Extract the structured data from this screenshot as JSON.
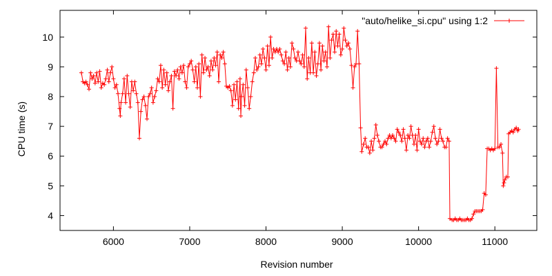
{
  "chart_data": {
    "type": "line",
    "title": "",
    "xlabel": "Revision number",
    "ylabel": "CPU time (s)",
    "xlim": [
      5300,
      11550
    ],
    "ylim": [
      3.5,
      10.9
    ],
    "xticks": [
      6000,
      7000,
      8000,
      9000,
      10000,
      11000
    ],
    "yticks": [
      4,
      5,
      6,
      7,
      8,
      9,
      10
    ],
    "grid": false,
    "legend_position": "top-right",
    "series": [
      {
        "name": "\"auto/helike_si.cpu\" using 1:2",
        "color": "#ff0000",
        "marker": "plus",
        "points": [
          [
            5580,
            8.8
          ],
          [
            5600,
            8.5
          ],
          [
            5620,
            8.45
          ],
          [
            5640,
            8.5
          ],
          [
            5660,
            8.4
          ],
          [
            5680,
            8.25
          ],
          [
            5700,
            8.8
          ],
          [
            5720,
            8.6
          ],
          [
            5740,
            8.7
          ],
          [
            5760,
            8.45
          ],
          [
            5780,
            8.8
          ],
          [
            5800,
            8.5
          ],
          [
            5820,
            8.85
          ],
          [
            5840,
            8.3
          ],
          [
            5860,
            8.45
          ],
          [
            5880,
            8.4
          ],
          [
            5900,
            8.6
          ],
          [
            5920,
            8.9
          ],
          [
            5940,
            8.5
          ],
          [
            5960,
            8.8
          ],
          [
            5980,
            9.0
          ],
          [
            6000,
            8.6
          ],
          [
            6020,
            8.3
          ],
          [
            6040,
            8.4
          ],
          [
            6060,
            8.1
          ],
          [
            6080,
            7.6
          ],
          [
            6090,
            7.35
          ],
          [
            6100,
            7.8
          ],
          [
            6120,
            8.1
          ],
          [
            6140,
            8.6
          ],
          [
            6160,
            7.8
          ],
          [
            6180,
            8.7
          ],
          [
            6200,
            8.1
          ],
          [
            6220,
            7.65
          ],
          [
            6240,
            8.5
          ],
          [
            6260,
            8.2
          ],
          [
            6280,
            8.5
          ],
          [
            6300,
            8.1
          ],
          [
            6320,
            7.8
          ],
          [
            6340,
            6.6
          ],
          [
            6360,
            7.5
          ],
          [
            6380,
            7.9
          ],
          [
            6400,
            8.0
          ],
          [
            6420,
            7.7
          ],
          [
            6440,
            7.25
          ],
          [
            6460,
            8.0
          ],
          [
            6480,
            8.1
          ],
          [
            6500,
            8.3
          ],
          [
            6520,
            7.8
          ],
          [
            6540,
            8.0
          ],
          [
            6560,
            8.2
          ],
          [
            6580,
            8.6
          ],
          [
            6600,
            8.5
          ],
          [
            6620,
            9.05
          ],
          [
            6640,
            8.3
          ],
          [
            6660,
            8.9
          ],
          [
            6680,
            8.4
          ],
          [
            6700,
            8.8
          ],
          [
            6720,
            8.2
          ],
          [
            6740,
            8.5
          ],
          [
            6760,
            8.7
          ],
          [
            6780,
            7.6
          ],
          [
            6800,
            8.85
          ],
          [
            6820,
            8.7
          ],
          [
            6840,
            8.9
          ],
          [
            6860,
            8.6
          ],
          [
            6880,
            9.0
          ],
          [
            6900,
            8.8
          ],
          [
            6920,
            9.05
          ],
          [
            6940,
            8.5
          ],
          [
            6960,
            8.3
          ],
          [
            6980,
            9.0
          ],
          [
            7000,
            9.1
          ],
          [
            7020,
            9.2
          ],
          [
            7040,
            8.9
          ],
          [
            7060,
            8.5
          ],
          [
            7080,
            9.0
          ],
          [
            7100,
            8.3
          ],
          [
            7120,
            9.1
          ],
          [
            7140,
            8.0
          ],
          [
            7160,
            9.4
          ],
          [
            7180,
            8.8
          ],
          [
            7200,
            9.3
          ],
          [
            7220,
            8.9
          ],
          [
            7240,
            9.0
          ],
          [
            7260,
            8.7
          ],
          [
            7280,
            9.2
          ],
          [
            7300,
            8.9
          ],
          [
            7320,
            9.3
          ],
          [
            7340,
            9.05
          ],
          [
            7360,
            9.5
          ],
          [
            7380,
            8.5
          ],
          [
            7400,
            9.4
          ],
          [
            7420,
            9.3
          ],
          [
            7440,
            9.5
          ],
          [
            7460,
            9.1
          ],
          [
            7480,
            8.35
          ],
          [
            7500,
            8.3
          ],
          [
            7520,
            8.35
          ],
          [
            7540,
            8.2
          ],
          [
            7560,
            7.7
          ],
          [
            7580,
            8.4
          ],
          [
            7600,
            7.9
          ],
          [
            7620,
            8.5
          ],
          [
            7640,
            7.6
          ],
          [
            7660,
            8.6
          ],
          [
            7670,
            7.35
          ],
          [
            7680,
            8.0
          ],
          [
            7700,
            8.4
          ],
          [
            7720,
            7.7
          ],
          [
            7740,
            8.9
          ],
          [
            7760,
            8.3
          ],
          [
            7780,
            7.6
          ],
          [
            7800,
            8.0
          ],
          [
            7820,
            8.5
          ],
          [
            7840,
            8.8
          ],
          [
            7860,
            9.3
          ],
          [
            7880,
            8.9
          ],
          [
            7900,
            9.0
          ],
          [
            7920,
            9.4
          ],
          [
            7940,
            9.1
          ],
          [
            7960,
            9.6
          ],
          [
            7980,
            9.3
          ],
          [
            8000,
            8.9
          ],
          [
            8020,
            9.7
          ],
          [
            8040,
            9.05
          ],
          [
            8060,
            10.0
          ],
          [
            8080,
            9.3
          ],
          [
            8100,
            9.6
          ],
          [
            8120,
            9.5
          ],
          [
            8140,
            9.6
          ],
          [
            8160,
            9.5
          ],
          [
            8180,
            9.6
          ],
          [
            8200,
            9.4
          ],
          [
            8220,
            9.2
          ],
          [
            8240,
            9.1
          ],
          [
            8260,
            9.5
          ],
          [
            8280,
            8.9
          ],
          [
            8300,
            9.3
          ],
          [
            8320,
            9.0
          ],
          [
            8340,
            9.8
          ],
          [
            8360,
            9.6
          ],
          [
            8380,
            9.3
          ],
          [
            8400,
            9.2
          ],
          [
            8420,
            9.5
          ],
          [
            8440,
            9.2
          ],
          [
            8460,
            9.1
          ],
          [
            8480,
            9.4
          ],
          [
            8500,
            9.0
          ],
          [
            8520,
            10.3
          ],
          [
            8540,
            8.6
          ],
          [
            8560,
            9.3
          ],
          [
            8580,
            8.8
          ],
          [
            8600,
            9.8
          ],
          [
            8620,
            8.8
          ],
          [
            8640,
            9.5
          ],
          [
            8660,
            8.7
          ],
          [
            8680,
            9.1
          ],
          [
            8700,
            9.8
          ],
          [
            8720,
            8.9
          ],
          [
            8740,
            9.7
          ],
          [
            8760,
            9.2
          ],
          [
            8780,
            9.5
          ],
          [
            8800,
            9.0
          ],
          [
            8820,
            10.35
          ],
          [
            8840,
            9.3
          ],
          [
            8860,
            9.9
          ],
          [
            8880,
            10.1
          ],
          [
            8900,
            9.5
          ],
          [
            8920,
            10.2
          ],
          [
            8940,
            9.7
          ],
          [
            8960,
            10.1
          ],
          [
            8980,
            9.4
          ],
          [
            9000,
            9.6
          ],
          [
            9020,
            10.3
          ],
          [
            9040,
            9.9
          ],
          [
            9060,
            9.7
          ],
          [
            9080,
            9.8
          ],
          [
            9100,
            9.6
          ],
          [
            9120,
            9.05
          ],
          [
            9140,
            8.3
          ],
          [
            9160,
            9.0
          ],
          [
            9180,
            9.1
          ],
          [
            9200,
            10.2
          ],
          [
            9220,
            9.1
          ],
          [
            9240,
            6.95
          ],
          [
            9255,
            6.15
          ],
          [
            9280,
            6.4
          ],
          [
            9300,
            6.6
          ],
          [
            9320,
            6.3
          ],
          [
            9340,
            6.3
          ],
          [
            9360,
            6.1
          ],
          [
            9380,
            6.5
          ],
          [
            9400,
            6.2
          ],
          [
            9420,
            6.6
          ],
          [
            9440,
            7.05
          ],
          [
            9460,
            6.7
          ],
          [
            9480,
            6.5
          ],
          [
            9500,
            6.3
          ],
          [
            9520,
            6.3
          ],
          [
            9540,
            6.4
          ],
          [
            9560,
            6.5
          ],
          [
            9580,
            6.4
          ],
          [
            9600,
            6.6
          ],
          [
            9620,
            6.7
          ],
          [
            9640,
            6.6
          ],
          [
            9660,
            6.7
          ],
          [
            9680,
            6.6
          ],
          [
            9700,
            6.5
          ],
          [
            9720,
            6.9
          ],
          [
            9740,
            6.8
          ],
          [
            9760,
            6.7
          ],
          [
            9780,
            6.5
          ],
          [
            9800,
            6.9
          ],
          [
            9820,
            6.6
          ],
          [
            9840,
            6.2
          ],
          [
            9860,
            6.7
          ],
          [
            9880,
            6.6
          ],
          [
            9900,
            7.0
          ],
          [
            9920,
            6.7
          ],
          [
            9940,
            6.4
          ],
          [
            9960,
            6.7
          ],
          [
            9980,
            6.2
          ],
          [
            10000,
            6.9
          ],
          [
            10020,
            6.5
          ],
          [
            10040,
            6.4
          ],
          [
            10060,
            6.6
          ],
          [
            10080,
            6.3
          ],
          [
            10100,
            6.5
          ],
          [
            10120,
            6.6
          ],
          [
            10140,
            6.3
          ],
          [
            10160,
            6.5
          ],
          [
            10180,
            6.8
          ],
          [
            10200,
            7.0
          ],
          [
            10220,
            6.6
          ],
          [
            10240,
            6.4
          ],
          [
            10260,
            6.5
          ],
          [
            10280,
            6.9
          ],
          [
            10300,
            6.6
          ],
          [
            10320,
            6.5
          ],
          [
            10340,
            6.3
          ],
          [
            10360,
            6.3
          ],
          [
            10380,
            6.6
          ],
          [
            10400,
            6.5
          ],
          [
            10410,
            3.9
          ],
          [
            10440,
            3.85
          ],
          [
            10460,
            3.85
          ],
          [
            10480,
            3.9
          ],
          [
            10500,
            3.85
          ],
          [
            10520,
            3.85
          ],
          [
            10540,
            3.9
          ],
          [
            10560,
            3.85
          ],
          [
            10580,
            3.85
          ],
          [
            10600,
            3.85
          ],
          [
            10620,
            3.85
          ],
          [
            10640,
            3.9
          ],
          [
            10660,
            3.85
          ],
          [
            10680,
            3.85
          ],
          [
            10700,
            3.9
          ],
          [
            10720,
            4.05
          ],
          [
            10740,
            4.15
          ],
          [
            10760,
            4.15
          ],
          [
            10780,
            4.15
          ],
          [
            10800,
            4.15
          ],
          [
            10820,
            4.15
          ],
          [
            10840,
            4.2
          ],
          [
            10860,
            4.75
          ],
          [
            10880,
            4.7
          ],
          [
            10900,
            6.25
          ],
          [
            10920,
            6.25
          ],
          [
            10940,
            6.2
          ],
          [
            10960,
            6.25
          ],
          [
            10980,
            6.2
          ],
          [
            11000,
            6.25
          ],
          [
            11020,
            8.95
          ],
          [
            11040,
            6.3
          ],
          [
            11060,
            6.3
          ],
          [
            11080,
            6.4
          ],
          [
            11100,
            6.1
          ],
          [
            11110,
            5.0
          ],
          [
            11120,
            5.1
          ],
          [
            11130,
            5.2
          ],
          [
            11150,
            5.3
          ],
          [
            11170,
            5.3
          ],
          [
            11180,
            6.75
          ],
          [
            11200,
            6.8
          ],
          [
            11220,
            6.85
          ],
          [
            11240,
            6.8
          ],
          [
            11260,
            6.9
          ],
          [
            11280,
            6.95
          ],
          [
            11300,
            6.85
          ],
          [
            11310,
            6.9
          ]
        ]
      }
    ]
  }
}
